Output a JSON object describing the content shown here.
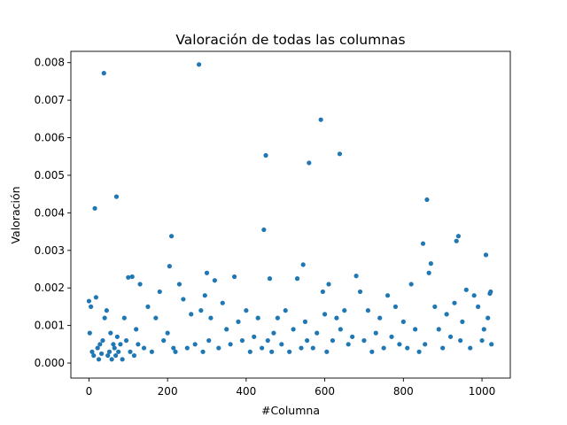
{
  "chart_data": {
    "type": "scatter",
    "title": "Valoración de todas las columnas",
    "xlabel": "#Columna",
    "ylabel": "Valoración",
    "xlim": [
      -46,
      1072
    ],
    "ylim": [
      -0.0004,
      0.0083
    ],
    "xticks": [
      {
        "value": 0,
        "label": "0"
      },
      {
        "value": 200,
        "label": "200"
      },
      {
        "value": 400,
        "label": "400"
      },
      {
        "value": 600,
        "label": "600"
      },
      {
        "value": 800,
        "label": "800"
      },
      {
        "value": 1000,
        "label": "1000"
      }
    ],
    "yticks": [
      {
        "value": 0.0,
        "label": "0.000"
      },
      {
        "value": 0.001,
        "label": "0.001"
      },
      {
        "value": 0.002,
        "label": "0.002"
      },
      {
        "value": 0.003,
        "label": "0.003"
      },
      {
        "value": 0.004,
        "label": "0.004"
      },
      {
        "value": 0.005,
        "label": "0.005"
      },
      {
        "value": 0.006,
        "label": "0.006"
      },
      {
        "value": 0.007,
        "label": "0.007"
      },
      {
        "value": 0.008,
        "label": "0.008"
      }
    ],
    "grid": false,
    "marker_color": "#1f77b4",
    "series": [
      {
        "x": [
          0,
          2,
          5,
          8,
          12,
          15,
          18,
          22,
          25,
          28,
          32,
          35,
          38,
          40,
          45,
          48,
          52,
          55,
          58,
          62,
          65,
          68,
          70,
          72,
          75,
          80,
          85,
          90,
          95,
          100,
          105,
          110,
          115,
          120,
          125,
          130,
          140,
          150,
          160,
          170,
          180,
          190,
          200,
          205,
          210,
          215,
          220,
          230,
          240,
          250,
          260,
          270,
          280,
          285,
          290,
          295,
          300,
          305,
          310,
          320,
          330,
          340,
          350,
          360,
          370,
          380,
          390,
          400,
          410,
          420,
          430,
          440,
          445,
          450,
          455,
          460,
          465,
          470,
          480,
          490,
          500,
          510,
          520,
          530,
          540,
          545,
          550,
          555,
          560,
          570,
          580,
          590,
          595,
          600,
          605,
          610,
          620,
          630,
          638,
          640,
          650,
          660,
          670,
          680,
          690,
          700,
          710,
          720,
          730,
          740,
          750,
          760,
          770,
          780,
          790,
          800,
          810,
          820,
          830,
          840,
          850,
          855,
          860,
          865,
          870,
          880,
          890,
          900,
          910,
          920,
          930,
          935,
          940,
          945,
          950,
          960,
          970,
          980,
          990,
          1000,
          1005,
          1010,
          1015,
          1020,
          1022,
          1024
        ],
        "y": [
          0.00165,
          0.0008,
          0.0015,
          0.0003,
          0.0002,
          0.00412,
          0.00175,
          0.0004,
          0.0001,
          0.0005,
          0.00025,
          0.0006,
          0.00772,
          0.0012,
          0.0014,
          0.0002,
          0.0003,
          0.0008,
          0.0001,
          0.0005,
          0.0004,
          0.0002,
          0.00443,
          0.0007,
          0.0003,
          0.0005,
          0.0001,
          0.0012,
          0.0006,
          0.00228,
          0.0003,
          0.0023,
          0.0002,
          0.0009,
          0.0005,
          0.0021,
          0.0004,
          0.0015,
          0.0003,
          0.0012,
          0.0019,
          0.0006,
          0.0008,
          0.00258,
          0.00338,
          0.0004,
          0.0003,
          0.0021,
          0.0017,
          0.0004,
          0.0013,
          0.0005,
          0.00795,
          0.0014,
          0.0003,
          0.0018,
          0.0024,
          0.0006,
          0.0012,
          0.0022,
          0.0004,
          0.0016,
          0.0009,
          0.0005,
          0.0023,
          0.0011,
          0.0006,
          0.0014,
          0.0003,
          0.0007,
          0.0012,
          0.0004,
          0.00355,
          0.00553,
          0.0006,
          0.00225,
          0.0003,
          0.0008,
          0.0012,
          0.0005,
          0.0014,
          0.0003,
          0.0009,
          0.00225,
          0.0004,
          0.00262,
          0.0011,
          0.0006,
          0.00533,
          0.0004,
          0.0008,
          0.00648,
          0.0019,
          0.0013,
          0.0003,
          0.0021,
          0.0006,
          0.0012,
          0.00557,
          0.0009,
          0.0014,
          0.0005,
          0.0007,
          0.00232,
          0.0019,
          0.0006,
          0.0014,
          0.0003,
          0.0008,
          0.0012,
          0.0004,
          0.0018,
          0.0007,
          0.0015,
          0.0005,
          0.0011,
          0.0004,
          0.0021,
          0.0009,
          0.0003,
          0.00318,
          0.0005,
          0.00435,
          0.0024,
          0.00265,
          0.0015,
          0.0009,
          0.0004,
          0.0013,
          0.0007,
          0.0016,
          0.00325,
          0.00338,
          0.0006,
          0.0011,
          0.00195,
          0.0004,
          0.0018,
          0.0015,
          0.0006,
          0.0009,
          0.00288,
          0.0012,
          0.00185,
          0.0019,
          0.0005
        ]
      }
    ]
  }
}
